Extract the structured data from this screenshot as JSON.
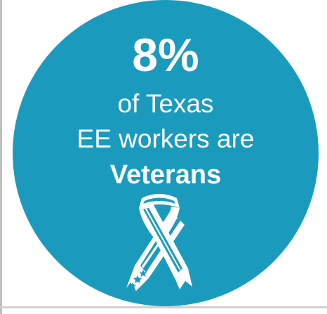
{
  "stat": "8%",
  "line1": "of Texas",
  "line2": "EE workers are",
  "line3": "Veterans",
  "icon": "veterans-ribbon-icon",
  "colors": {
    "circle": "#1a9bbe",
    "text": "#ffffff"
  }
}
